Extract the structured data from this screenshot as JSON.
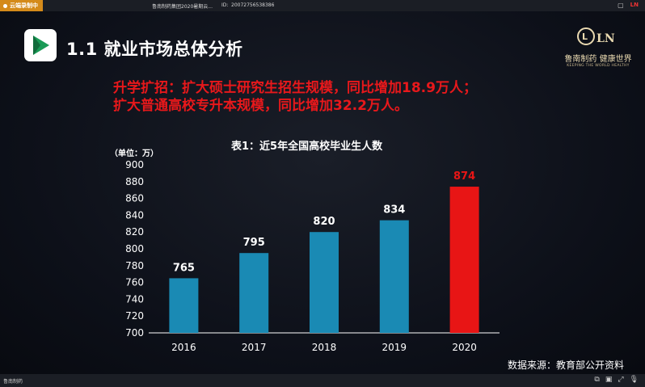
{
  "topbar": {
    "recording_label": "云端录制中",
    "meeting_title": "鲁南制药集团2020暑期云...",
    "meeting_id_label": "ID:",
    "meeting_id": "20072756538386"
  },
  "slide": {
    "title": "1.1 就业市场总体分析",
    "brand": {
      "name": "鲁南制药 健康世界",
      "tagline": "KEEPING THE WORLD HEALTHY",
      "logo_letters": "LN"
    },
    "headline": [
      "升学扩招：扩大硕士研究生招生规模，同比增加18.9万人；",
      "扩大普通高校专升本规模，同比增加32.2万人。"
    ],
    "source": "数据来源：教育部公开资料"
  },
  "chart_data": {
    "type": "bar",
    "title": "表1：近5年全国高校毕业生人数",
    "unit": "（单位：万）",
    "categories": [
      "2016",
      "2017",
      "2018",
      "2019",
      "2020"
    ],
    "values": [
      765,
      795,
      820,
      834,
      874
    ],
    "ylim": [
      700,
      900
    ],
    "yticks": [
      700,
      720,
      740,
      760,
      780,
      800,
      820,
      840,
      860,
      880,
      900
    ],
    "grid": false,
    "colors": {
      "bar": "#1a8ab4",
      "highlight": "#e81515",
      "label": "#ffffff",
      "highlight_label": "#e81515"
    },
    "highlight_index": 4
  },
  "bottombar": {
    "name": "鲁南制药"
  },
  "colors": {
    "accent": "#e8181b",
    "recording": "#d48a1a"
  }
}
